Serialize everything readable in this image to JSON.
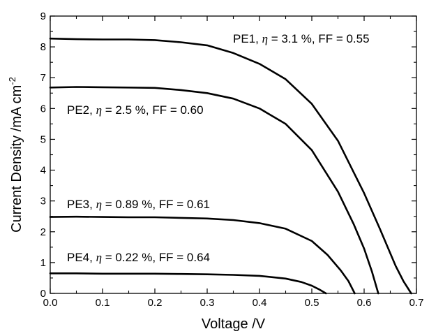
{
  "chart_data": {
    "type": "line",
    "title": "",
    "xlabel": "Voltage /V",
    "ylabel": "Current Density /mA cm",
    "ylabel_superscript": "-2",
    "xlim": [
      0.0,
      0.7
    ],
    "ylim": [
      0,
      9
    ],
    "xticks": [
      "0.0",
      "0.1",
      "0.2",
      "0.3",
      "0.4",
      "0.5",
      "0.6",
      "0.7"
    ],
    "yticks": [
      "0",
      "1",
      "2",
      "3",
      "4",
      "5",
      "6",
      "7",
      "8",
      "9"
    ],
    "grid": false,
    "legend": "none",
    "series": [
      {
        "name": "PE1",
        "color": "#000000",
        "annotation": {
          "prefix": "PE1, ",
          "symbol": "η",
          "suffix": " = 3.1 %, FF = 0.55"
        },
        "x": [
          0,
          0.05,
          0.1,
          0.15,
          0.2,
          0.25,
          0.3,
          0.35,
          0.4,
          0.45,
          0.5,
          0.55,
          0.6,
          0.63,
          0.66,
          0.675,
          0.69
        ],
        "y": [
          8.27,
          8.25,
          8.24,
          8.24,
          8.22,
          8.15,
          8.05,
          7.8,
          7.45,
          6.95,
          6.15,
          4.95,
          3.25,
          2.1,
          0.9,
          0.4,
          0
        ]
      },
      {
        "name": "PE2",
        "color": "#000000",
        "annotation": {
          "prefix": "PE2, ",
          "symbol": "η",
          "suffix": " = 2.5 %, FF = 0.60"
        },
        "x": [
          0,
          0.05,
          0.1,
          0.15,
          0.2,
          0.25,
          0.3,
          0.35,
          0.4,
          0.45,
          0.5,
          0.55,
          0.58,
          0.6,
          0.615,
          0.627
        ],
        "y": [
          6.68,
          6.7,
          6.69,
          6.68,
          6.67,
          6.6,
          6.5,
          6.32,
          6.0,
          5.5,
          4.65,
          3.3,
          2.25,
          1.45,
          0.7,
          0
        ]
      },
      {
        "name": "PE3",
        "color": "#000000",
        "annotation": {
          "prefix": "PE3, ",
          "symbol": "η",
          "suffix": " = 0.89 %, FF = 0.61"
        },
        "x": [
          0,
          0.05,
          0.1,
          0.15,
          0.2,
          0.25,
          0.3,
          0.35,
          0.4,
          0.45,
          0.5,
          0.53,
          0.555,
          0.57,
          0.582
        ],
        "y": [
          2.48,
          2.49,
          2.48,
          2.47,
          2.47,
          2.45,
          2.43,
          2.38,
          2.28,
          2.1,
          1.7,
          1.25,
          0.75,
          0.4,
          0
        ]
      },
      {
        "name": "PE4",
        "color": "#000000",
        "annotation": {
          "prefix": "PE4, ",
          "symbol": "η",
          "suffix": " = 0.22 %, FF = 0.64"
        },
        "x": [
          0,
          0.05,
          0.1,
          0.15,
          0.2,
          0.25,
          0.3,
          0.35,
          0.4,
          0.45,
          0.48,
          0.5,
          0.515,
          0.527
        ],
        "y": [
          0.65,
          0.65,
          0.64,
          0.64,
          0.64,
          0.63,
          0.62,
          0.6,
          0.57,
          0.48,
          0.37,
          0.25,
          0.12,
          0
        ]
      }
    ]
  }
}
